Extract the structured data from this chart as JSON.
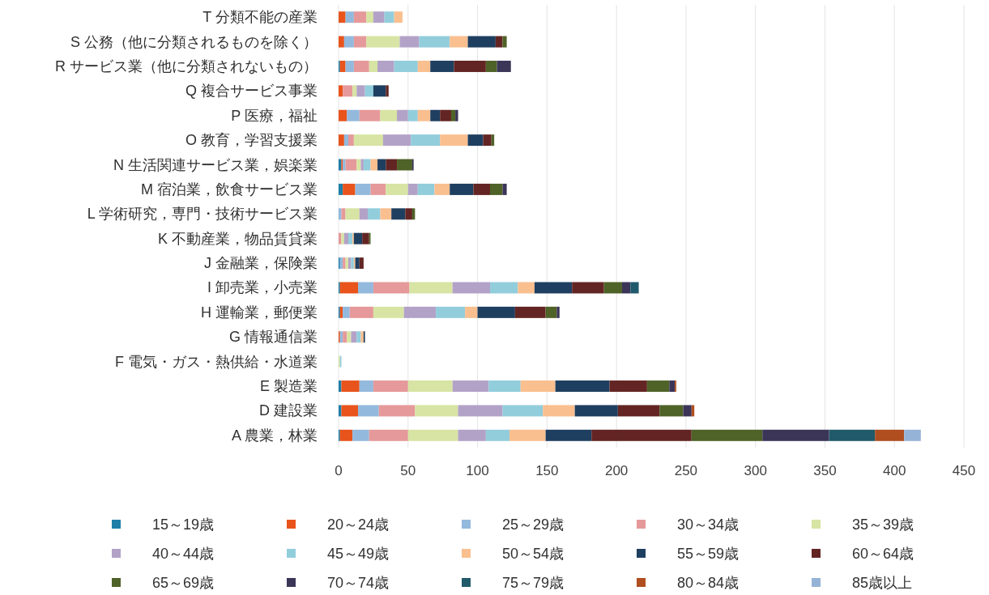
{
  "chart_data": {
    "type": "bar",
    "orientation": "horizontal",
    "stacked": true,
    "categories": [
      "T 分類不能の産業",
      "S 公務（他に分類されるものを除く）",
      "R サービス業（他に分類されないもの）",
      "Q 複合サービス事業",
      "P 医療，福祉",
      "O 教育，学習支援業",
      "N 生活関連サービス業，娯楽業",
      "M 宿泊業，飲食サービス業",
      "L 学術研究，専門・技術サービス業",
      "K 不動産業，物品賃貸業",
      "J 金融業，保険業",
      "I 卸売業，小売業",
      "H 運輸業，郵便業",
      "G 情報通信業",
      "F 電気・ガス・熱供給・水道業",
      "E 製造業",
      "D 建設業",
      "A 農業，林業"
    ],
    "xlim": [
      0,
      450
    ],
    "xticks": [
      0,
      50,
      100,
      150,
      200,
      250,
      300,
      350,
      400,
      450
    ],
    "grid": "x",
    "legend": "bottom",
    "series": [
      {
        "name": "15～19歳",
        "color": "#1f7fa8",
        "values": [
          0,
          0,
          1,
          0,
          0,
          0,
          2,
          3,
          0,
          0,
          1,
          1,
          1,
          0,
          0,
          2,
          2,
          1
        ]
      },
      {
        "name": "20～24歳",
        "color": "#e8541c",
        "values": [
          5,
          4,
          4,
          3,
          6,
          4,
          1,
          9,
          0,
          0,
          0,
          13,
          2,
          1,
          0,
          13,
          12,
          9
        ]
      },
      {
        "name": "25～29歳",
        "color": "#93b9dd",
        "values": [
          6,
          7,
          6,
          0,
          9,
          3,
          2,
          11,
          2,
          0,
          2,
          11,
          5,
          2,
          0,
          10,
          15,
          12
        ]
      },
      {
        "name": "30～34歳",
        "color": "#e6999a",
        "values": [
          9,
          9,
          11,
          7,
          15,
          4,
          8,
          11,
          3,
          2,
          2,
          26,
          17,
          3,
          0,
          25,
          26,
          28
        ]
      },
      {
        "name": "35～39歳",
        "color": "#d7e4a3",
        "values": [
          5,
          24,
          6,
          3,
          12,
          21,
          3,
          16,
          10,
          2,
          2,
          31,
          22,
          3,
          1,
          32,
          31,
          36
        ]
      },
      {
        "name": "40～44歳",
        "color": "#b3a2c7",
        "values": [
          8,
          14,
          12,
          6,
          8,
          20,
          2,
          7,
          6,
          3,
          2,
          27,
          23,
          4,
          0,
          26,
          32,
          20
        ]
      },
      {
        "name": "45～49歳",
        "color": "#92cddc",
        "values": [
          7,
          22,
          17,
          6,
          7,
          21,
          5,
          12,
          9,
          3,
          2,
          20,
          21,
          3,
          1,
          23,
          29,
          17
        ]
      },
      {
        "name": "50～54歳",
        "color": "#fabf8f",
        "values": [
          6,
          13,
          9,
          0,
          9,
          20,
          5,
          11,
          8,
          1,
          1,
          12,
          9,
          2,
          0,
          25,
          23,
          26
        ]
      },
      {
        "name": "55～59歳",
        "color": "#1f3f60",
        "values": [
          0,
          20,
          17,
          9,
          7,
          11,
          6,
          17,
          10,
          6,
          3,
          27,
          27,
          1,
          0,
          39,
          31,
          33
        ]
      },
      {
        "name": "60～64歳",
        "color": "#632523",
        "values": [
          0,
          5,
          23,
          2,
          8,
          6,
          8,
          12,
          5,
          5,
          3,
          23,
          22,
          0,
          0,
          27,
          30,
          72
        ]
      },
      {
        "name": "65～69歳",
        "color": "#4f6228",
        "values": [
          0,
          3,
          8,
          0,
          3,
          2,
          11,
          9,
          2,
          1,
          0,
          13,
          8,
          0,
          0,
          16,
          17,
          51
        ]
      },
      {
        "name": "70～74歳",
        "color": "#3b3558",
        "values": [
          0,
          0,
          10,
          0,
          2,
          0,
          1,
          3,
          0,
          0,
          0,
          6,
          2,
          0,
          0,
          4,
          6,
          48
        ]
      },
      {
        "name": "75～79歳",
        "color": "#215a6b",
        "values": [
          0,
          0,
          0,
          0,
          0,
          0,
          0,
          0,
          0,
          0,
          0,
          6,
          0,
          0,
          0,
          0,
          0,
          33
        ]
      },
      {
        "name": "80～84歳",
        "color": "#b04e20",
        "values": [
          0,
          0,
          0,
          0,
          0,
          0,
          0,
          0,
          0,
          0,
          0,
          0,
          0,
          0,
          0,
          1,
          2,
          21
        ]
      },
      {
        "name": "85歳以上",
        "color": "#95b3d7",
        "values": [
          0,
          0,
          0,
          0,
          0,
          0,
          0,
          0,
          0,
          0,
          0,
          0,
          0,
          0,
          0,
          0,
          0,
          12
        ]
      }
    ]
  }
}
